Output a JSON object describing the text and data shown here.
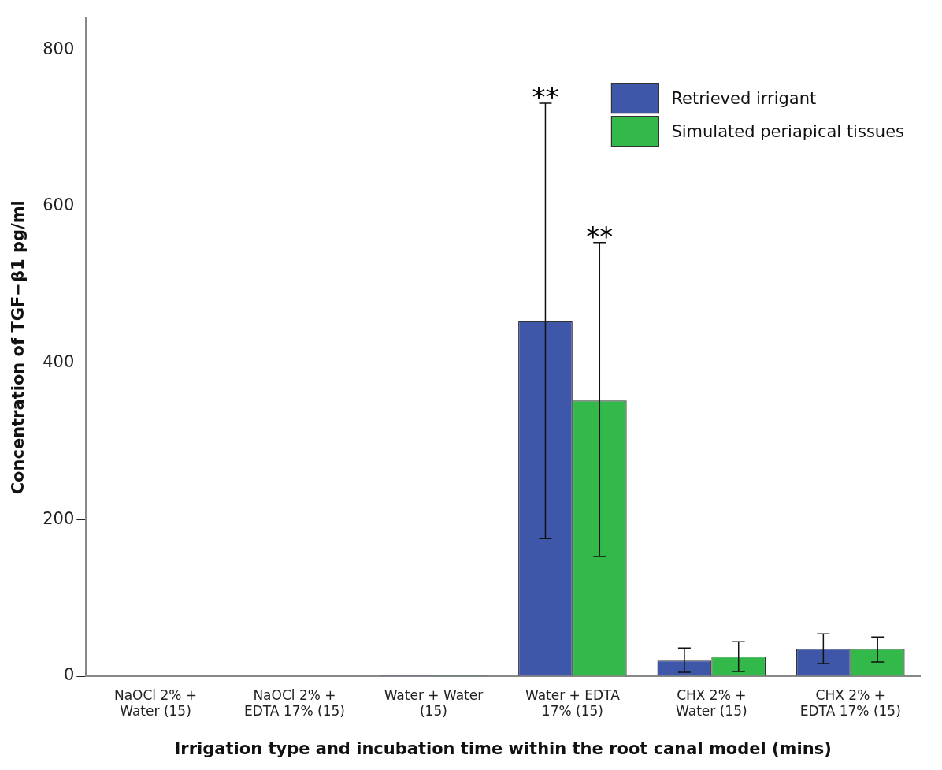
{
  "chart_data": {
    "type": "bar",
    "ylabel": "Concentration of TGF−β1 pg/ml",
    "xlabel": "Irrigation type and incubation time within the root canal model (mins)",
    "categories": [
      "NaOCl 2% +\nWater (15)",
      "NaOCl 2% +\nEDTA 17% (15)",
      "Water + Water\n(15)",
      "Water + EDTA\n17% (15)",
      "CHX 2% +\nWater (15)",
      "CHX 2% +\nEDTA 17% (15)"
    ],
    "series": [
      {
        "name": "Retrieved irrigant",
        "color": "#3f57a8",
        "values": [
          0,
          0,
          1,
          454,
          20,
          35
        ],
        "errors": [
          null,
          null,
          null,
          [
            176,
            732
          ],
          [
            5,
            36
          ],
          [
            16,
            54
          ]
        ]
      },
      {
        "name": "Simulated periapical tissues",
        "color": "#33b84a",
        "values": [
          0,
          0,
          1,
          352,
          25,
          35
        ],
        "errors": [
          null,
          null,
          null,
          [
            153,
            554
          ],
          [
            6,
            44
          ],
          [
            18,
            50
          ]
        ]
      }
    ],
    "ylim": [
      0,
      840
    ],
    "yticks": [
      0,
      200,
      400,
      600,
      800
    ],
    "grid": false,
    "legend": "top right",
    "annotations": [
      "**",
      "**"
    ]
  }
}
